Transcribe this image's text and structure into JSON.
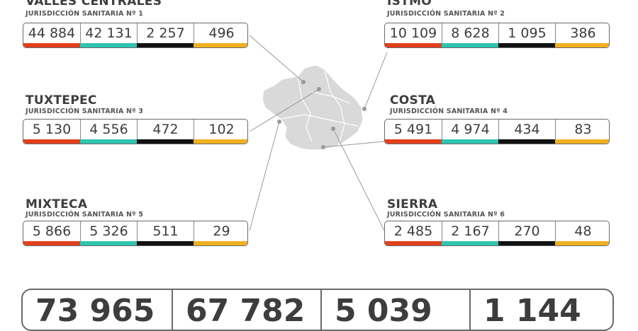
{
  "regions": [
    {
      "name": "VALLES CENTRALES",
      "subtitle": "JURISDICCIÓN SANITARIA Nº 1",
      "values": [
        "44 884",
        "42 131",
        "2 257",
        "496"
      ]
    },
    {
      "name": "ISTMO",
      "subtitle": "JURISDICCIÓN SANITARIA Nº 2",
      "values": [
        "10 109",
        "8 628",
        "1 095",
        "386"
      ]
    },
    {
      "name": "TUXTEPEC",
      "subtitle": "JURISDICCIÓN SANITARIA Nº 3",
      "values": [
        "5 130",
        "4 556",
        "472",
        "102"
      ]
    },
    {
      "name": "COSTA",
      "subtitle": "JURISDICCIÓN SANITARIA Nº 4",
      "values": [
        "5 491",
        "4 974",
        "434",
        "83"
      ]
    },
    {
      "name": "MIXTECA",
      "subtitle": "JURISDICCIÓN SANITARIA Nº 5",
      "values": [
        "5 866",
        "5 326",
        "511",
        "29"
      ]
    },
    {
      "name": "SIERRA",
      "subtitle": "JURISDICCIÓN SANITARIA Nº 6",
      "values": [
        "2 485",
        "2 167",
        "270",
        "48"
      ]
    }
  ],
  "totals": {
    "values": [
      "73 965",
      "67 782",
      "5 039",
      "1 144"
    ]
  },
  "colors": {
    "orange": "#e2401c",
    "teal": "#2ec4b0",
    "black": "#111111",
    "yellow": "#f0b020",
    "map": "#d9d9d9"
  }
}
